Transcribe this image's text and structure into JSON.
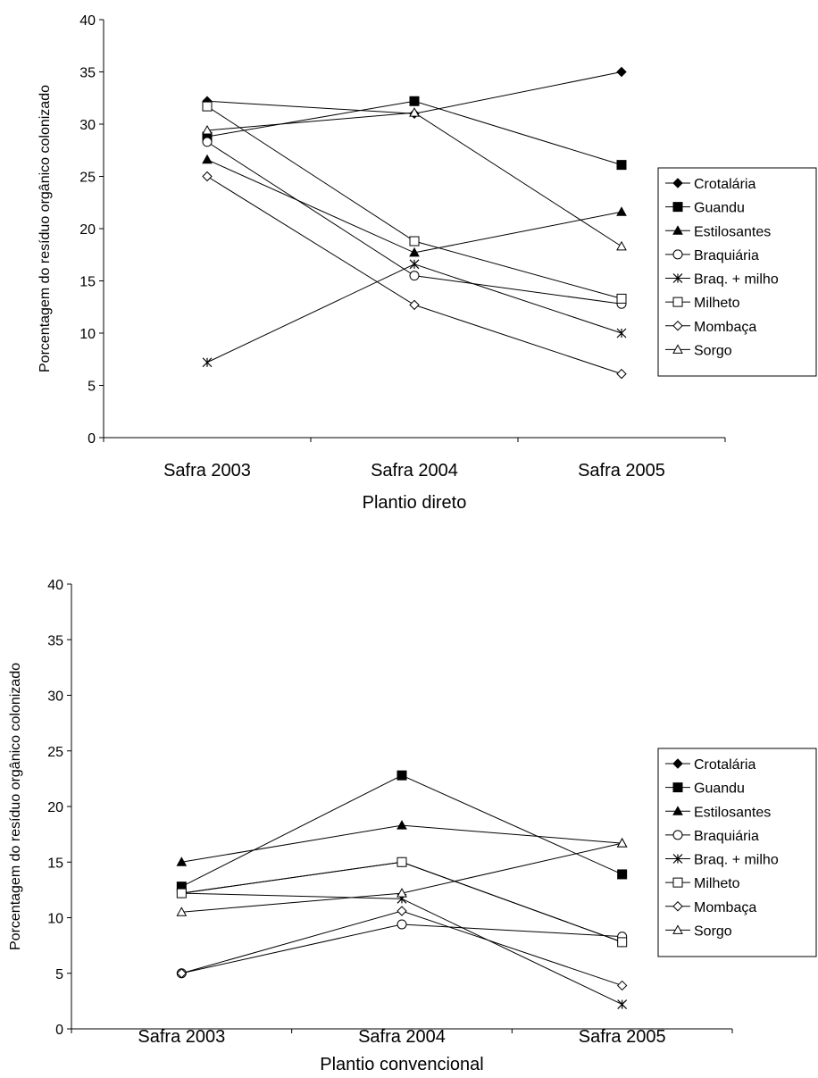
{
  "chart_data": [
    {
      "type": "line",
      "xlabel": "Plantio direto",
      "ylabel": "Porcentagem do resíduo orgânico colonizado",
      "categories": [
        "Safra 2003",
        "Safra 2004",
        "Safra 2005"
      ],
      "ylim": [
        0,
        40
      ],
      "yticks": [
        "0",
        "5",
        "10",
        "15",
        "20",
        "25",
        "30",
        "35",
        "40"
      ],
      "grid": false,
      "legend_position": "right",
      "series": [
        {
          "name": "Crotalária",
          "marker": "diamond-filled",
          "values": [
            32.2,
            31.0,
            35.0
          ]
        },
        {
          "name": "Guandu",
          "marker": "square-filled",
          "values": [
            28.8,
            32.2,
            26.1
          ]
        },
        {
          "name": "Estilosantes",
          "marker": "triangle-filled",
          "values": [
            26.6,
            17.7,
            21.6
          ]
        },
        {
          "name": "Braquiária",
          "marker": "circle-open",
          "values": [
            28.3,
            15.5,
            12.8
          ]
        },
        {
          "name": "Braq. + milho",
          "marker": "asterisk",
          "values": [
            7.2,
            16.6,
            10.0
          ]
        },
        {
          "name": "Milheto",
          "marker": "square-open",
          "values": [
            31.7,
            18.8,
            13.3
          ]
        },
        {
          "name": "Mombaça",
          "marker": "diamond-open",
          "values": [
            25.0,
            12.7,
            6.1
          ]
        },
        {
          "name": "Sorgo",
          "marker": "triangle-open",
          "values": [
            29.4,
            31.1,
            18.3
          ]
        }
      ]
    },
    {
      "type": "line",
      "xlabel": "Plantio convencional",
      "ylabel": "Porcentagem do resíduo orgânico colonizado",
      "categories": [
        "Safra 2003",
        "Safra 2004",
        "Safra 2005"
      ],
      "ylim": [
        0,
        40
      ],
      "yticks": [
        "0",
        "5",
        "10",
        "15",
        "20",
        "25",
        "30",
        "35",
        "40"
      ],
      "grid": false,
      "legend_position": "right",
      "series": [
        {
          "name": "Crotalária",
          "marker": "diamond-filled",
          "values": [
            12.2,
            15.0,
            7.8
          ]
        },
        {
          "name": "Guandu",
          "marker": "square-filled",
          "values": [
            12.8,
            22.8,
            13.9
          ]
        },
        {
          "name": "Estilosantes",
          "marker": "triangle-filled",
          "values": [
            15.0,
            18.3,
            16.7
          ]
        },
        {
          "name": "Braquiária",
          "marker": "circle-open",
          "values": [
            5.0,
            9.4,
            8.3
          ]
        },
        {
          "name": "Braq. + milho",
          "marker": "asterisk",
          "values": [
            12.2,
            11.7,
            2.2
          ]
        },
        {
          "name": "Milheto",
          "marker": "square-open",
          "values": [
            12.2,
            15.0,
            7.8
          ]
        },
        {
          "name": "Mombaça",
          "marker": "diamond-open",
          "values": [
            5.0,
            10.6,
            3.9
          ]
        },
        {
          "name": "Sorgo",
          "marker": "triangle-open",
          "values": [
            10.5,
            12.2,
            16.7
          ]
        }
      ]
    }
  ]
}
